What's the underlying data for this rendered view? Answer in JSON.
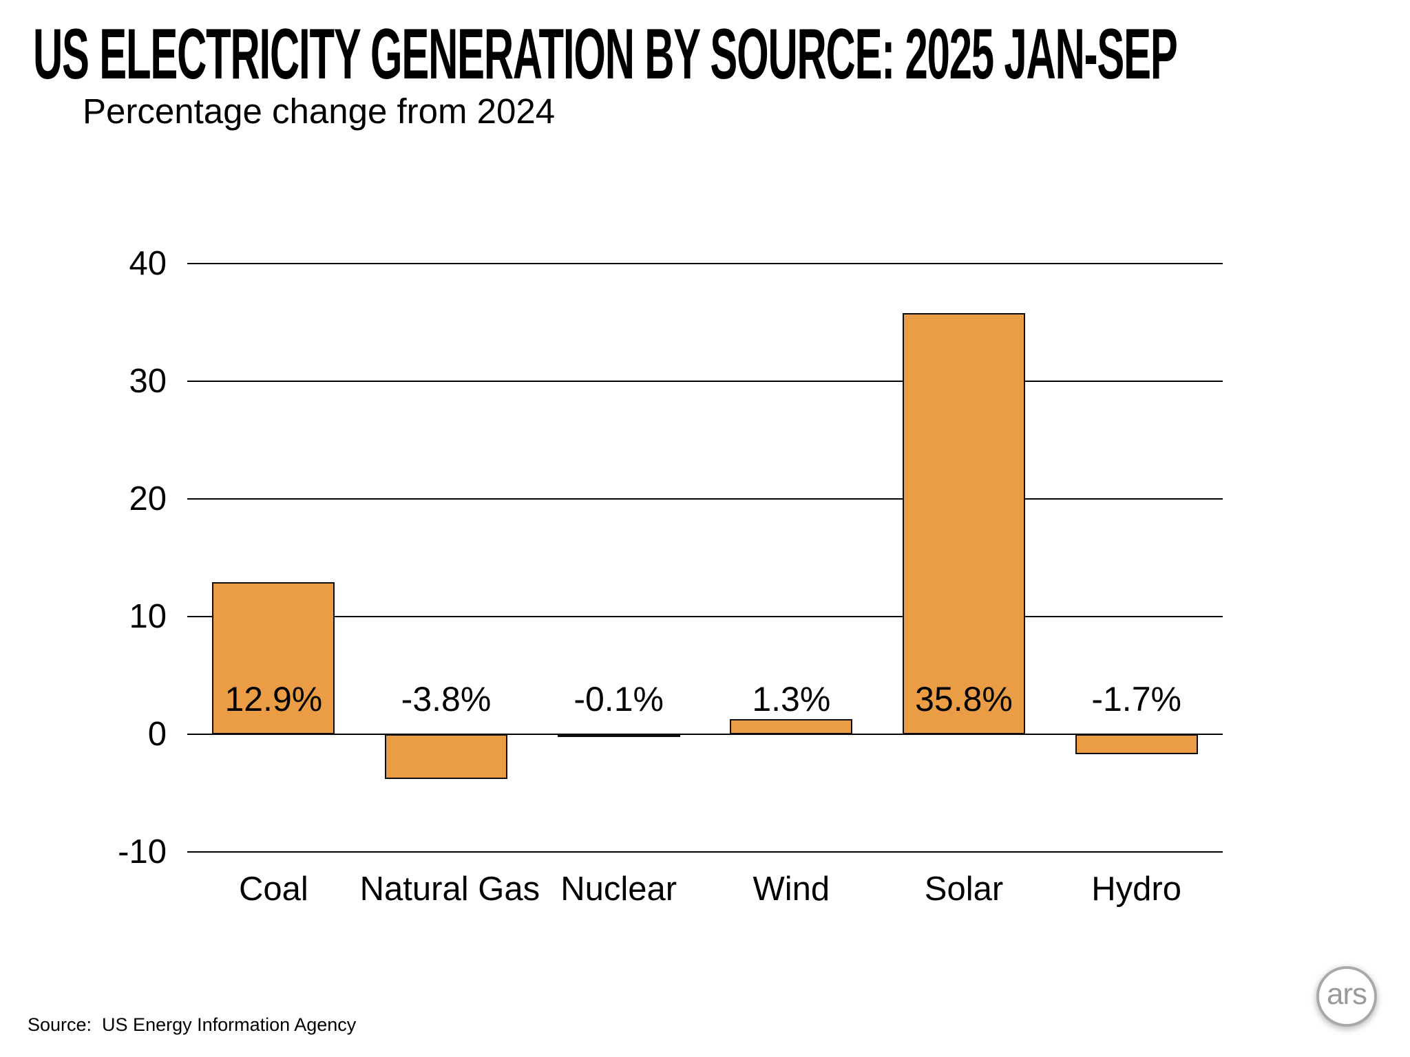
{
  "title": "US ELECTRICITY GENERATION BY SOURCE: 2025 JAN-SEP",
  "subtitle": "Percentage change from 2024",
  "source_note": "Source:  US Energy Information Agency",
  "logo_text": "ars",
  "colors": {
    "bar_fill": "#EA9D45",
    "bar_border": "#0d0d0d",
    "gridline": "#000000",
    "text": "#000000",
    "logo_gray": "#9a9a9a",
    "background": "#ffffff"
  },
  "chart_data": {
    "type": "bar",
    "title": "US ELECTRICITY GENERATION BY SOURCE: 2025 JAN-SEP",
    "subtitle": "Percentage change from 2024",
    "categories": [
      "Coal",
      "Natural Gas",
      "Nuclear",
      "Wind",
      "Solar",
      "Hydro"
    ],
    "values": [
      12.9,
      -3.8,
      -0.1,
      1.3,
      35.8,
      -1.7
    ],
    "value_labels": [
      "12.9%",
      "-3.8%",
      "-0.1%",
      "1.3%",
      "35.8%",
      "-1.7%"
    ],
    "xlabel": "",
    "ylabel": "",
    "ylim": [
      -10,
      40
    ],
    "yticks": [
      40,
      30,
      20,
      10,
      0,
      -10
    ],
    "grid": true,
    "legend": false
  }
}
